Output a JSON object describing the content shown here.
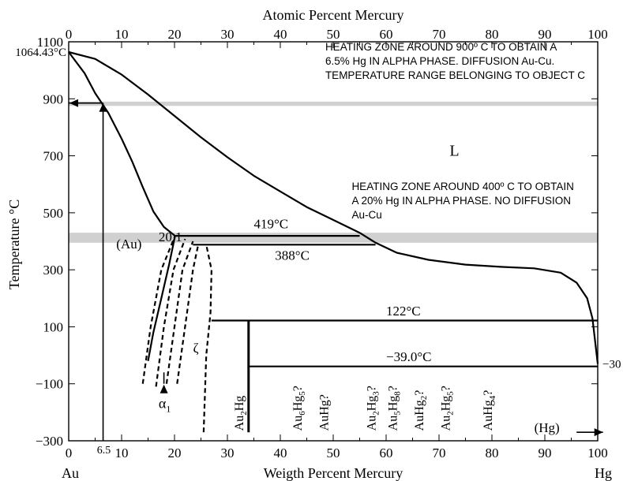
{
  "chart_data": {
    "type": "phase-diagram",
    "title": "",
    "x_top_label": "Atomic Percent Mercury",
    "x_bottom_label": "Weigth Percent Mercury",
    "y_label": "Temperature °C",
    "left_element": "Au",
    "right_element": "Hg",
    "xlim": [
      0,
      100
    ],
    "ylim": [
      -300,
      1100
    ],
    "y_ticks": [
      -300,
      -100,
      100,
      300,
      500,
      700,
      900,
      1100
    ],
    "y_tick_labels": [
      "−300",
      "−100",
      "100",
      "300",
      "500",
      "700",
      "900",
      "1100"
    ],
    "x_bottom_ticks": [
      0,
      10,
      20,
      30,
      40,
      50,
      60,
      70,
      80,
      90,
      100
    ],
    "x_bottom_tick_labels": [
      "0",
      "10",
      "20",
      "30",
      "40",
      "50",
      "60",
      "70",
      "80",
      "90",
      "100"
    ],
    "x_top_ticks": [
      0,
      10,
      20,
      30,
      40,
      50,
      60,
      70,
      80,
      90,
      100
    ],
    "x_top_tick_labels": [
      "0",
      "10",
      "20",
      "30",
      "40",
      "50",
      "60",
      "70",
      "80",
      "90",
      "100"
    ],
    "extra_x_tick": {
      "x": 6.5,
      "label": "6.5"
    },
    "extra_y_labels": [
      {
        "y": 1064.43,
        "label": "1064.43°C"
      },
      {
        "y": -30,
        "label": "−30"
      }
    ],
    "shaded_bands": [
      {
        "y_from": 875,
        "y_to": 890
      },
      {
        "y_from": 395,
        "y_to": 430
      }
    ],
    "curves": [
      {
        "name": "liquidus",
        "points": [
          [
            0,
            1064
          ],
          [
            5,
            1040
          ],
          [
            10,
            985
          ],
          [
            15,
            915
          ],
          [
            20,
            840
          ],
          [
            25,
            765
          ],
          [
            30,
            695
          ],
          [
            35,
            630
          ],
          [
            40,
            575
          ],
          [
            45,
            520
          ],
          [
            50,
            475
          ],
          [
            55,
            430
          ],
          [
            58,
            395
          ],
          [
            62,
            360
          ],
          [
            68,
            335
          ],
          [
            75,
            318
          ],
          [
            82,
            310
          ],
          [
            88,
            305
          ],
          [
            93,
            290
          ],
          [
            96,
            255
          ],
          [
            98,
            200
          ],
          [
            99,
            130
          ],
          [
            100,
            -30
          ]
        ]
      },
      {
        "name": "solidus",
        "points": [
          [
            0,
            1064
          ],
          [
            3,
            990
          ],
          [
            5,
            920
          ],
          [
            7.5,
            850
          ],
          [
            10,
            760
          ],
          [
            12,
            680
          ],
          [
            14,
            590
          ],
          [
            16,
            505
          ],
          [
            18,
            450
          ],
          [
            20.1,
            419
          ]
        ]
      },
      {
        "name": "alpha-solvus",
        "points": [
          [
            20.1,
            419
          ],
          [
            19,
            320
          ],
          [
            17.5,
            200
          ],
          [
            16,
            80
          ],
          [
            15,
            -20
          ]
        ]
      },
      {
        "name": "peritectic-419",
        "points": [
          [
            20.1,
            419
          ],
          [
            55,
            419
          ]
        ]
      },
      {
        "name": "peritectic-388",
        "points": [
          [
            23.5,
            388
          ],
          [
            58,
            388
          ]
        ]
      },
      {
        "name": "peritectic-122",
        "points": [
          [
            27,
            122
          ],
          [
            100,
            122
          ]
        ]
      },
      {
        "name": "eutectic-neg39",
        "points": [
          [
            34,
            -39
          ],
          [
            100,
            -39
          ]
        ]
      },
      {
        "name": "Au2Hg-line",
        "points": [
          [
            34,
            122
          ],
          [
            34,
            -270
          ]
        ]
      }
    ],
    "dashed_curves": [
      {
        "points": [
          [
            14,
            -100
          ],
          [
            15.5,
            100
          ],
          [
            17.5,
            300
          ],
          [
            20.1,
            419
          ]
        ]
      },
      {
        "points": [
          [
            16.5,
            -110
          ],
          [
            18,
            100
          ],
          [
            19.8,
            300
          ],
          [
            22,
            408
          ]
        ]
      },
      {
        "points": [
          [
            18.5,
            -100
          ],
          [
            20,
            100
          ],
          [
            21.5,
            300
          ],
          [
            23.5,
            400
          ]
        ]
      },
      {
        "points": [
          [
            20.5,
            -100
          ],
          [
            22,
            100
          ],
          [
            23.5,
            300
          ],
          [
            24.5,
            390
          ]
        ]
      },
      {
        "points": [
          [
            25.5,
            -270
          ],
          [
            26,
            0
          ],
          [
            26.8,
            150
          ],
          [
            27,
            300
          ],
          [
            26,
            388
          ]
        ]
      }
    ],
    "guide_lines": [
      {
        "from": [
          6.5,
          -300
        ],
        "to": [
          6.5,
          885
        ]
      },
      {
        "from": [
          6.5,
          885
        ],
        "to": [
          0,
          885
        ]
      },
      {
        "from": [
          18,
          -60
        ],
        "to": [
          18,
          -100
        ]
      },
      {
        "from": [
          96,
          -270
        ],
        "to": [
          101,
          -270
        ]
      }
    ],
    "labels": [
      {
        "text": "L",
        "x": 72,
        "y": 700
      },
      {
        "text": "(Au)",
        "x": 9,
        "y": 375
      },
      {
        "text": "20.1",
        "x": 17,
        "y": 400
      },
      {
        "text": "419°C",
        "x": 35,
        "y": 445
      },
      {
        "text": "388°C",
        "x": 39,
        "y": 335
      },
      {
        "text": "122°C",
        "x": 60,
        "y": 140
      },
      {
        "text": "−39.0°C",
        "x": 60,
        "y": -20
      },
      {
        "text": "ζ",
        "x": 23.5,
        "y": 10
      },
      {
        "text": "(Hg)",
        "x": 88,
        "y": -270
      }
    ],
    "alpha_label": {
      "symbol": "α",
      "subscript": "1",
      "x": 17,
      "y": -185
    },
    "vertical_labels": [
      {
        "x": 33,
        "parts": [
          {
            "t": "Au"
          },
          {
            "t": "2",
            "sub": true
          },
          {
            "t": "Hg"
          }
        ]
      },
      {
        "x": 44,
        "parts": [
          {
            "t": "Au"
          },
          {
            "t": "6",
            "sub": true
          },
          {
            "t": "Hg"
          },
          {
            "t": "5",
            "sub": true
          },
          {
            "t": "?"
          }
        ]
      },
      {
        "x": 49,
        "parts": [
          {
            "t": "AuHg?"
          }
        ]
      },
      {
        "x": 58,
        "parts": [
          {
            "t": "Au"
          },
          {
            "t": "2",
            "sub": true
          },
          {
            "t": "Hg"
          },
          {
            "t": "3",
            "sub": true
          },
          {
            "t": "?"
          }
        ]
      },
      {
        "x": 62,
        "parts": [
          {
            "t": "Au"
          },
          {
            "t": "5",
            "sub": true
          },
          {
            "t": "Hg"
          },
          {
            "t": "8",
            "sub": true
          },
          {
            "t": "?"
          }
        ]
      },
      {
        "x": 67,
        "parts": [
          {
            "t": "AuHg"
          },
          {
            "t": "2",
            "sub": true
          },
          {
            "t": "?"
          }
        ]
      },
      {
        "x": 72,
        "parts": [
          {
            "t": "Au"
          },
          {
            "t": "2",
            "sub": true
          },
          {
            "t": "Hg"
          },
          {
            "t": "5",
            "sub": true
          },
          {
            "t": "?"
          }
        ]
      },
      {
        "x": 80,
        "parts": [
          {
            "t": "AuHg"
          },
          {
            "t": "4",
            "sub": true
          },
          {
            "t": "?"
          }
        ]
      }
    ],
    "annotations": [
      {
        "x": 48.5,
        "y": 1070,
        "lines": [
          "HEATING ZONE AROUND 900º C TO OBTAIN A",
          "6.5% Hg IN ALPHA PHASE. DIFFUSION Au-Cu.",
          "TEMPERATURE RANGE BELONGING TO OBJECT C"
        ]
      },
      {
        "x": 53.5,
        "y": 580,
        "lines": [
          "HEATING ZONE AROUND 400º C TO OBTAIN",
          "A 20% Hg IN ALPHA PHASE. NO DIFFUSION",
          "Au-Cu"
        ]
      }
    ]
  }
}
